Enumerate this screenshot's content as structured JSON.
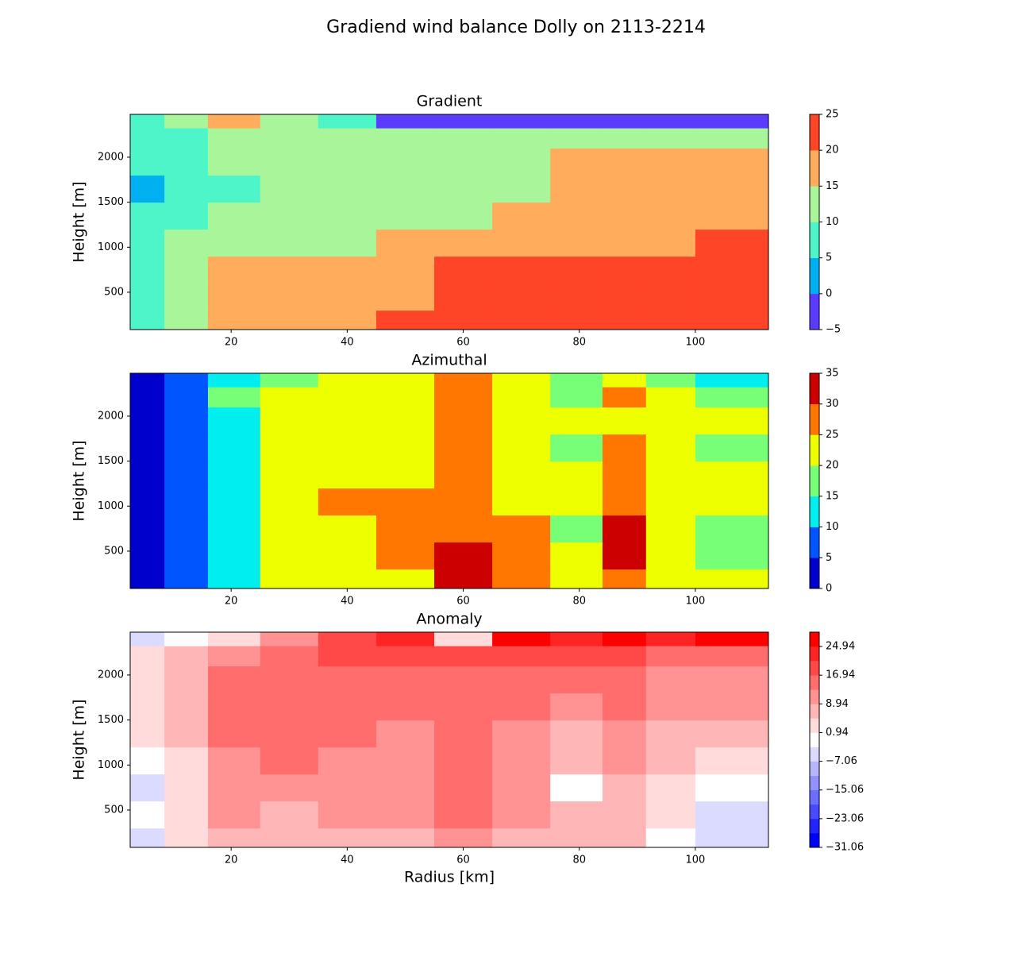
{
  "title": "Gradiend wind balance Dolly on 2113-2214",
  "chart_data": [
    {
      "type": "contour",
      "title": "Gradient",
      "ylabel": "Height [m]",
      "x": [
        5,
        12,
        20,
        30,
        40,
        50,
        60,
        70,
        80,
        88,
        95,
        105
      ],
      "y": [
        150,
        450,
        750,
        1050,
        1350,
        1650,
        1950,
        2250,
        2400
      ],
      "z": [
        [
          8,
          12,
          17,
          17,
          17,
          22,
          22,
          22,
          22,
          22,
          22,
          22
        ],
        [
          7,
          12,
          17,
          17,
          17,
          17,
          22,
          22,
          22,
          22,
          22,
          22
        ],
        [
          7,
          12,
          17,
          17,
          17,
          17,
          22,
          22,
          22,
          22,
          22,
          22
        ],
        [
          7,
          12,
          12,
          12,
          12,
          17,
          17,
          17,
          17,
          17,
          17,
          22
        ],
        [
          7,
          7,
          12,
          12,
          12,
          12,
          12,
          17,
          17,
          17,
          17,
          17
        ],
        [
          3,
          7,
          7,
          12,
          12,
          12,
          12,
          12,
          17,
          17,
          17,
          17
        ],
        [
          7,
          7,
          12,
          12,
          12,
          12,
          12,
          12,
          17,
          17,
          17,
          17
        ],
        [
          7,
          7,
          12,
          12,
          12,
          12,
          12,
          12,
          12,
          12,
          12,
          12
        ],
        [
          7,
          12,
          17,
          12,
          7,
          -2,
          -2,
          -2,
          -2,
          -2,
          -2,
          -2
        ]
      ],
      "xlim": [
        2.6,
        112.6
      ],
      "ylim": [
        85,
        2476
      ],
      "xticks": [
        20,
        40,
        60,
        80,
        100
      ],
      "yticks": [
        500,
        1000,
        1500,
        2000
      ],
      "levels": [
        -5,
        0,
        5,
        10,
        15,
        20,
        25
      ],
      "colors": [
        "#5b3cff",
        "#00b0f0",
        "#4ef5c8",
        "#a8f59a",
        "#ffad5c",
        "#ff4527"
      ],
      "cticks": [
        {
          "value": -5,
          "label": "−5"
        },
        0,
        5,
        10,
        15,
        20,
        25
      ]
    },
    {
      "type": "contour",
      "title": "Azimuthal",
      "ylabel": "Height [m]",
      "x": [
        5,
        12,
        20,
        30,
        40,
        50,
        60,
        70,
        80,
        88,
        95,
        105
      ],
      "y": [
        150,
        450,
        750,
        1050,
        1350,
        1650,
        1950,
        2250,
        2400
      ],
      "z": [
        [
          2,
          7,
          12,
          22,
          22,
          22,
          32,
          27,
          22,
          27,
          22,
          22
        ],
        [
          2,
          7,
          12,
          22,
          22,
          27,
          32,
          27,
          22,
          32,
          22,
          17
        ],
        [
          2,
          7,
          12,
          22,
          22,
          27,
          27,
          27,
          17,
          32,
          22,
          17
        ],
        [
          2,
          7,
          12,
          22,
          27,
          27,
          27,
          22,
          22,
          27,
          22,
          22
        ],
        [
          2,
          7,
          12,
          22,
          22,
          22,
          27,
          22,
          22,
          27,
          22,
          22
        ],
        [
          2,
          7,
          12,
          22,
          22,
          22,
          27,
          22,
          17,
          27,
          22,
          17
        ],
        [
          2,
          7,
          12,
          22,
          22,
          22,
          27,
          22,
          22,
          22,
          22,
          22
        ],
        [
          2,
          7,
          17,
          22,
          22,
          22,
          27,
          22,
          17,
          27,
          22,
          17
        ],
        [
          2,
          7,
          12,
          17,
          22,
          22,
          27,
          22,
          17,
          22,
          17,
          12
        ]
      ],
      "xlim": [
        2.6,
        112.6
      ],
      "ylim": [
        85,
        2476
      ],
      "xticks": [
        20,
        40,
        60,
        80,
        100
      ],
      "yticks": [
        500,
        1000,
        1500,
        2000
      ],
      "levels": [
        0,
        5,
        10,
        15,
        20,
        25,
        30,
        35
      ],
      "colors": [
        "#0000cc",
        "#0055ff",
        "#00eeee",
        "#77ff77",
        "#eeff00",
        "#ff7700",
        "#cc0000"
      ],
      "cticks": [
        0,
        5,
        10,
        15,
        20,
        25,
        30,
        35
      ]
    },
    {
      "type": "contour",
      "title": "Anomaly",
      "ylabel": "Height [m]",
      "xlabel": "Radius [km]",
      "x": [
        5,
        12,
        20,
        30,
        40,
        50,
        60,
        70,
        80,
        88,
        95,
        105
      ],
      "y": [
        150,
        450,
        750,
        1050,
        1350,
        1650,
        1950,
        2250,
        2400
      ],
      "z": [
        [
          -5,
          2,
          6,
          6,
          6,
          6,
          10,
          6,
          6,
          6,
          -2,
          -5
        ],
        [
          -2,
          2,
          10,
          6,
          10,
          10,
          14,
          10,
          6,
          6,
          2,
          -5
        ],
        [
          -5,
          2,
          10,
          10,
          10,
          10,
          14,
          10,
          -2,
          6,
          2,
          -2
        ],
        [
          -2,
          2,
          10,
          14,
          10,
          10,
          14,
          10,
          6,
          10,
          6,
          2
        ],
        [
          2,
          6,
          14,
          14,
          14,
          10,
          14,
          10,
          6,
          10,
          6,
          6
        ],
        [
          2,
          6,
          14,
          14,
          14,
          14,
          14,
          14,
          10,
          14,
          10,
          10
        ],
        [
          2,
          6,
          14,
          14,
          14,
          14,
          14,
          14,
          14,
          14,
          10,
          10
        ],
        [
          2,
          6,
          10,
          14,
          18,
          18,
          18,
          18,
          18,
          18,
          14,
          14
        ],
        [
          -5,
          -2,
          2,
          10,
          18,
          22,
          2,
          26,
          22,
          26,
          22,
          26
        ]
      ],
      "xlim": [
        2.6,
        112.6
      ],
      "ylim": [
        85,
        2476
      ],
      "xticks": [
        20,
        40,
        60,
        80,
        100
      ],
      "yticks": [
        500,
        1000,
        1500,
        2000
      ],
      "levels": [
        -31.06,
        -27.06,
        -23.06,
        -19.06,
        -15.06,
        -11.06,
        -7.06,
        -3.06,
        0.94,
        4.94,
        8.94,
        12.94,
        16.94,
        20.94,
        24.94,
        28.94
      ],
      "colors": [
        "#0000ff",
        "#2424ff",
        "#4949ff",
        "#6d6dff",
        "#9292ff",
        "#b6b6ff",
        "#dbdbff",
        "#ffffff",
        "#ffdbdb",
        "#ffb6b6",
        "#ff9292",
        "#ff6d6d",
        "#ff4949",
        "#ff2424",
        "#ff0000"
      ],
      "cticks": [
        {
          "value": -31.06,
          "label": "−31.06"
        },
        {
          "value": -23.06,
          "label": "−23.06"
        },
        {
          "value": -15.06,
          "label": "−15.06"
        },
        {
          "value": -7.06,
          "label": "−7.06"
        },
        0.94,
        8.94,
        16.94,
        24.94
      ]
    }
  ]
}
